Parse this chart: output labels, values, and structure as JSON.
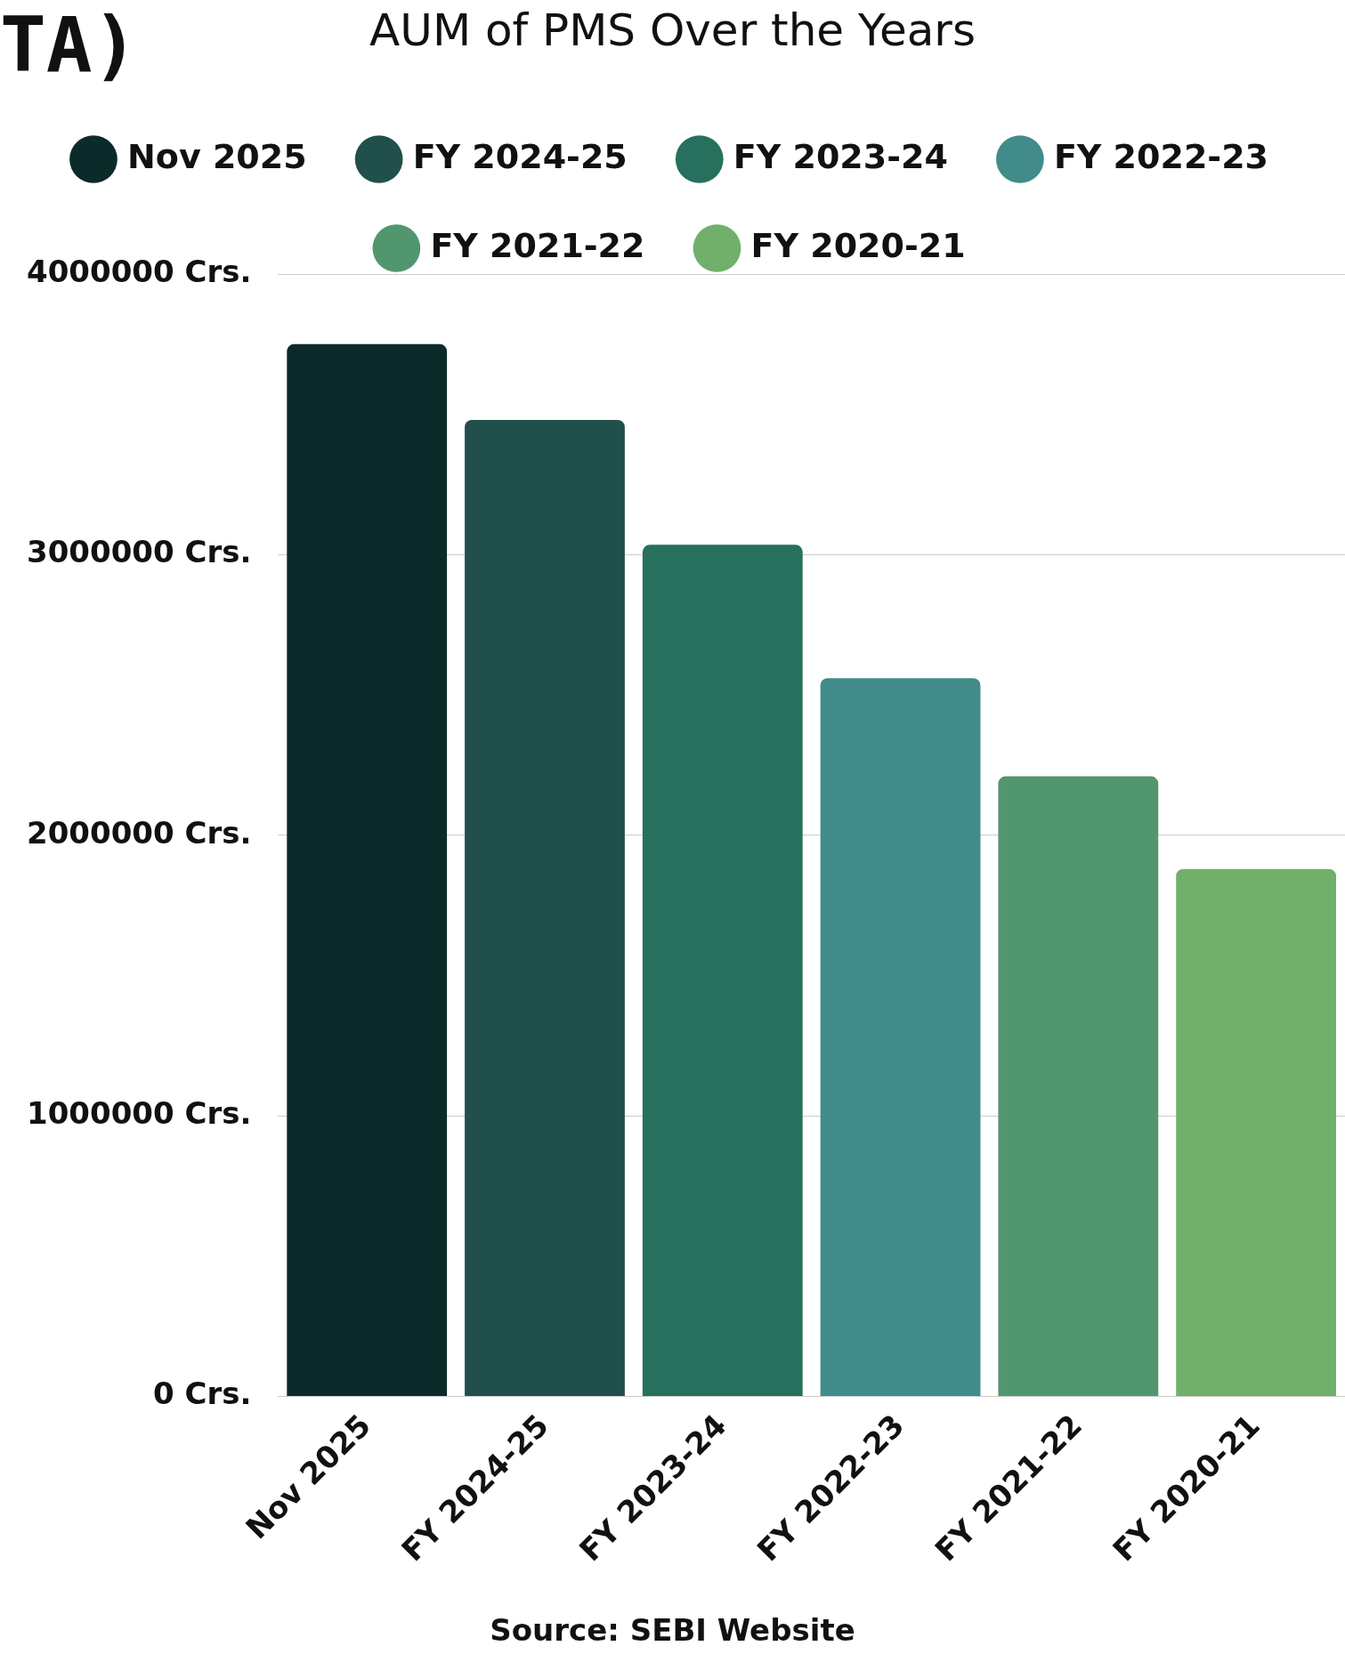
{
  "chart_data": {
    "type": "bar",
    "title": "AUM of PMS Over the Years",
    "categories": [
      "Nov 2025",
      "FY 2024-25",
      "FY 2023-24",
      "FY 2022-23",
      "FY 2021-22",
      "FY 2020-21"
    ],
    "series": [
      {
        "name": "Nov 2025",
        "color": "#0b2b2a",
        "values": [
          3750000,
          null,
          null,
          null,
          null,
          null
        ]
      },
      {
        "name": "FY 2024-25",
        "color": "#214f4b",
        "values": [
          null,
          3480000,
          null,
          null,
          null,
          null
        ]
      },
      {
        "name": "FY 2023-24",
        "color": "#26705d",
        "values": [
          null,
          null,
          3035000,
          null,
          null,
          null
        ]
      },
      {
        "name": "FY 2022-23",
        "color": "#418c8a",
        "values": [
          null,
          null,
          null,
          2560000,
          null,
          null
        ]
      },
      {
        "name": "FY 2021-22",
        "color": "#52966f",
        "values": [
          null,
          null,
          null,
          null,
          2210000,
          null
        ]
      },
      {
        "name": "FY 2020-21",
        "color": "#70b06a",
        "values": [
          null,
          null,
          null,
          null,
          null,
          1880000
        ]
      }
    ],
    "ylim": [
      0,
      4000000
    ],
    "yticks": [
      {
        "value": 0,
        "label": "0 Crs."
      },
      {
        "value": 1000000,
        "label": "1000000 Crs."
      },
      {
        "value": 2000000,
        "label": "2000000 Crs."
      },
      {
        "value": 3000000,
        "label": "3000000 Crs."
      },
      {
        "value": 4000000,
        "label": "4000000 Crs."
      }
    ],
    "grid": "y",
    "legend": "top",
    "annotations": [
      "TA)",
      "Source: SEBI Website"
    ]
  }
}
